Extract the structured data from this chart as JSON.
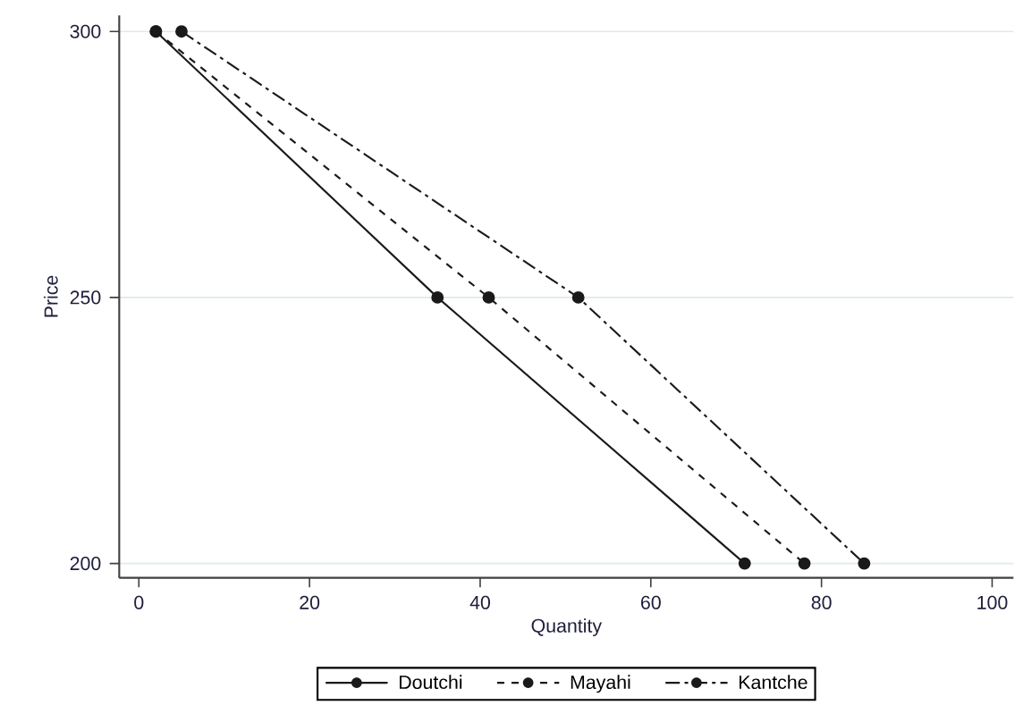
{
  "chart_data": {
    "type": "line",
    "xlabel": "Quantity",
    "ylabel": "Price",
    "series": [
      {
        "name": "Doutchi",
        "color": "#1a1a1a",
        "line_style": "solid",
        "x": [
          2,
          35,
          71
        ],
        "values": [
          300,
          250,
          200
        ]
      },
      {
        "name": "Mayahi",
        "color": "#1a1a1a",
        "line_style": "dashed",
        "x": [
          2,
          41,
          78
        ],
        "values": [
          300,
          250,
          200
        ]
      },
      {
        "name": "Kantche",
        "color": "#1a1a1a",
        "line_style": "dashdot",
        "x": [
          5,
          51.5,
          85
        ],
        "values": [
          300,
          250,
          200
        ]
      }
    ],
    "xlim": [
      -2.3,
      102.5
    ],
    "ylim": [
      197.3,
      303
    ],
    "xticks": [
      0,
      20,
      40,
      60,
      80,
      100
    ],
    "yticks": [
      200,
      250,
      300
    ],
    "grid": "y",
    "legend": "bottom",
    "marker": "circle"
  }
}
